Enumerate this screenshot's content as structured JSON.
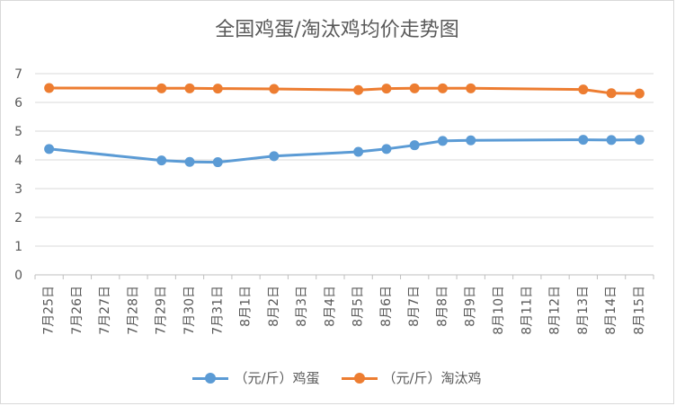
{
  "chart_data": {
    "type": "line",
    "title": "全国鸡蛋/淘汰鸡均价走势图",
    "categories": [
      "7月25日",
      "7月26日",
      "7月27日",
      "7月28日",
      "7月29日",
      "7月30日",
      "7月31日",
      "8月1日",
      "8月2日",
      "8月3日",
      "8月4日",
      "8月5日",
      "8月6日",
      "8月7日",
      "8月8日",
      "8月9日",
      "8月10日",
      "8月11日",
      "8月12日",
      "8月13日",
      "8月14日",
      "8月15日"
    ],
    "ylim": [
      0,
      7
    ],
    "yticks": [
      0,
      1,
      2,
      3,
      4,
      5,
      6,
      7
    ],
    "grid": true,
    "legend_position": "bottom",
    "series": [
      {
        "name": "（元/斤）鸡蛋",
        "color": "#5b9bd5",
        "values": [
          4.38,
          null,
          null,
          null,
          3.98,
          3.93,
          3.92,
          null,
          4.13,
          null,
          null,
          4.28,
          4.38,
          4.51,
          4.66,
          4.68,
          null,
          null,
          null,
          4.7,
          4.69,
          4.7
        ]
      },
      {
        "name": "（元/斤）淘汰鸡",
        "color": "#ed7d31",
        "values": [
          6.5,
          null,
          null,
          null,
          6.49,
          6.49,
          6.48,
          null,
          6.47,
          null,
          null,
          6.43,
          6.48,
          6.49,
          6.49,
          6.49,
          null,
          null,
          null,
          6.45,
          6.32,
          6.31
        ]
      }
    ]
  }
}
